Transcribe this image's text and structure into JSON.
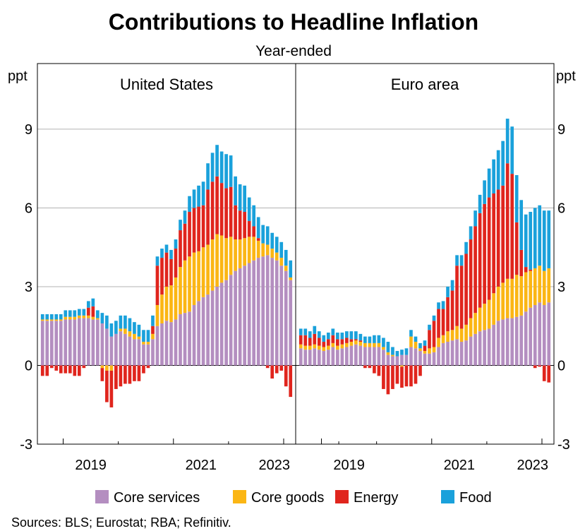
{
  "chart_data": {
    "type": "bar",
    "title": "Contributions to Headline Inflation",
    "subtitle": "Year-ended",
    "ylabel": "ppt",
    "ylim": [
      -3,
      11.5
    ],
    "yticks": [
      -3,
      0,
      3,
      6,
      9
    ],
    "stacked": true,
    "grid": true,
    "legend_position": "bottom",
    "source": "Sources: BLS; Eurostat; RBA; Refinitiv.",
    "colors": {
      "Core services": "#b48ec0",
      "Core goods": "#fbb614",
      "Energy": "#e0251d",
      "Food": "#1aa1db"
    },
    "legend": [
      "Core services",
      "Core goods",
      "Energy",
      "Food"
    ],
    "panels": [
      {
        "name": "United States",
        "x_tick_labels": [
          "2019",
          "2021",
          "2023"
        ],
        "x_start": "2018-08",
        "x_end": "2023-07",
        "series": [
          {
            "name": "Core services",
            "values": [
              1.7,
              1.7,
              1.7,
              1.7,
              1.7,
              1.75,
              1.75,
              1.75,
              1.8,
              1.8,
              1.8,
              1.75,
              1.75,
              1.6,
              1.4,
              1.1,
              1.2,
              1.3,
              1.2,
              1.1,
              1.0,
              1.0,
              0.8,
              0.8,
              1.0,
              1.5,
              1.6,
              1.7,
              1.65,
              1.75,
              1.95,
              2.0,
              2.05,
              2.3,
              2.45,
              2.6,
              2.7,
              2.85,
              3.0,
              3.15,
              3.25,
              3.45,
              3.6,
              3.7,
              3.8,
              3.9,
              4.0,
              4.1,
              4.15,
              4.2,
              4.1,
              4.0,
              3.8,
              3.6,
              3.25
            ]
          },
          {
            "name": "Core goods",
            "values": [
              0.05,
              0.05,
              0.05,
              0.05,
              0.05,
              0.1,
              0.1,
              0.1,
              0.1,
              0.1,
              0.1,
              0.1,
              0.05,
              -0.1,
              -0.2,
              -0.2,
              0.0,
              0.1,
              0.2,
              0.2,
              0.2,
              0.1,
              0.1,
              0.1,
              0.2,
              0.8,
              1.1,
              1.3,
              1.4,
              1.6,
              1.8,
              2.0,
              2.1,
              2.0,
              1.9,
              1.9,
              1.9,
              1.95,
              2.0,
              1.8,
              1.6,
              1.45,
              1.2,
              1.1,
              1.05,
              1.0,
              0.9,
              0.65,
              0.5,
              0.4,
              0.35,
              0.3,
              0.3,
              0.2,
              0.1
            ]
          },
          {
            "name": "Energy",
            "values": [
              -0.4,
              -0.4,
              -0.1,
              -0.2,
              -0.3,
              -0.3,
              -0.3,
              -0.4,
              -0.4,
              -0.1,
              0.3,
              0.4,
              0.0,
              -0.5,
              -1.2,
              -1.4,
              -0.9,
              -0.8,
              -0.7,
              -0.7,
              -0.6,
              -0.6,
              -0.3,
              -0.1,
              0.3,
              1.5,
              1.4,
              1.3,
              1.0,
              1.1,
              1.4,
              1.4,
              1.7,
              1.7,
              1.7,
              1.6,
              2.1,
              2.2,
              2.2,
              2.0,
              1.9,
              1.9,
              1.3,
              1.1,
              1.0,
              0.6,
              0.4,
              0.1,
              0.0,
              -0.1,
              -0.5,
              -0.3,
              -0.2,
              -0.8,
              -1.2
            ]
          },
          {
            "name": "Food",
            "values": [
              0.2,
              0.2,
              0.2,
              0.2,
              0.2,
              0.25,
              0.25,
              0.25,
              0.25,
              0.25,
              0.25,
              0.3,
              0.3,
              0.4,
              0.5,
              0.5,
              0.5,
              0.5,
              0.5,
              0.5,
              0.45,
              0.45,
              0.45,
              0.45,
              0.4,
              0.35,
              0.35,
              0.3,
              0.35,
              0.35,
              0.4,
              0.5,
              0.6,
              0.7,
              0.8,
              0.9,
              1.0,
              1.1,
              1.2,
              1.2,
              1.3,
              1.2,
              1.1,
              1.0,
              1.0,
              0.9,
              0.8,
              0.8,
              0.7,
              0.7,
              0.6,
              0.6,
              0.6,
              0.6,
              0.65
            ]
          }
        ]
      },
      {
        "name": "Euro area",
        "x_tick_labels": [
          "2019",
          "2021",
          "2023"
        ],
        "x_start": "2018-08",
        "x_end": "2023-06",
        "series": [
          {
            "name": "Core services",
            "values": [
              0.65,
              0.6,
              0.6,
              0.65,
              0.6,
              0.55,
              0.6,
              0.7,
              0.6,
              0.65,
              0.7,
              0.75,
              0.8,
              0.75,
              0.7,
              0.7,
              0.7,
              0.7,
              0.6,
              0.4,
              0.35,
              0.35,
              0.4,
              0.4,
              0.7,
              0.65,
              0.55,
              0.45,
              0.45,
              0.5,
              0.7,
              0.85,
              0.9,
              0.95,
              1.0,
              0.9,
              0.95,
              1.1,
              1.2,
              1.3,
              1.35,
              1.4,
              1.55,
              1.7,
              1.75,
              1.8,
              1.8,
              1.85,
              1.9,
              2.05,
              2.2,
              2.3,
              2.4,
              2.3,
              2.4
            ]
          },
          {
            "name": "Core goods",
            "values": [
              0.15,
              0.15,
              0.15,
              0.15,
              0.15,
              0.15,
              0.15,
              0.15,
              0.15,
              0.15,
              0.15,
              0.15,
              0.15,
              0.15,
              0.15,
              0.15,
              0.15,
              0.15,
              0.1,
              0.1,
              0.05,
              0.0,
              -0.05,
              0.0,
              0.4,
              0.25,
              0.1,
              0.1,
              0.2,
              0.2,
              0.35,
              0.3,
              0.4,
              0.4,
              0.5,
              0.5,
              0.6,
              0.7,
              0.8,
              0.9,
              1.0,
              1.1,
              1.2,
              1.3,
              1.4,
              1.5,
              1.5,
              1.6,
              1.5,
              1.5,
              1.4,
              1.4,
              1.4,
              1.3,
              1.3
            ]
          },
          {
            "name": "Energy",
            "values": [
              0.35,
              0.4,
              0.3,
              0.4,
              0.3,
              0.2,
              0.25,
              0.3,
              0.25,
              0.2,
              0.2,
              0.1,
              0.05,
              0.05,
              -0.1,
              -0.1,
              -0.3,
              -0.4,
              -0.9,
              -1.1,
              -0.9,
              -0.7,
              -0.8,
              -0.8,
              -0.8,
              -0.7,
              -0.4,
              0.2,
              0.7,
              1.0,
              1.1,
              1.0,
              1.3,
              1.5,
              2.3,
              2.4,
              2.7,
              3.0,
              3.3,
              3.6,
              3.8,
              3.9,
              3.8,
              3.7,
              3.7,
              4.4,
              4.0,
              2.0,
              1.0,
              0.2,
              0.05,
              -0.1,
              -0.05,
              -0.6,
              -0.65
            ]
          },
          {
            "name": "Food",
            "values": [
              0.25,
              0.25,
              0.25,
              0.3,
              0.25,
              0.25,
              0.25,
              0.25,
              0.25,
              0.25,
              0.25,
              0.3,
              0.3,
              0.25,
              0.25,
              0.25,
              0.3,
              0.3,
              0.35,
              0.4,
              0.3,
              0.2,
              0.2,
              0.25,
              0.25,
              0.2,
              0.2,
              0.2,
              0.2,
              0.2,
              0.25,
              0.3,
              0.4,
              0.4,
              0.4,
              0.4,
              0.45,
              0.5,
              0.6,
              0.7,
              0.9,
              1.1,
              1.3,
              1.5,
              1.7,
              1.7,
              1.8,
              1.8,
              1.9,
              2.0,
              2.2,
              2.3,
              2.3,
              2.3,
              2.2
            ]
          }
        ]
      }
    ]
  }
}
